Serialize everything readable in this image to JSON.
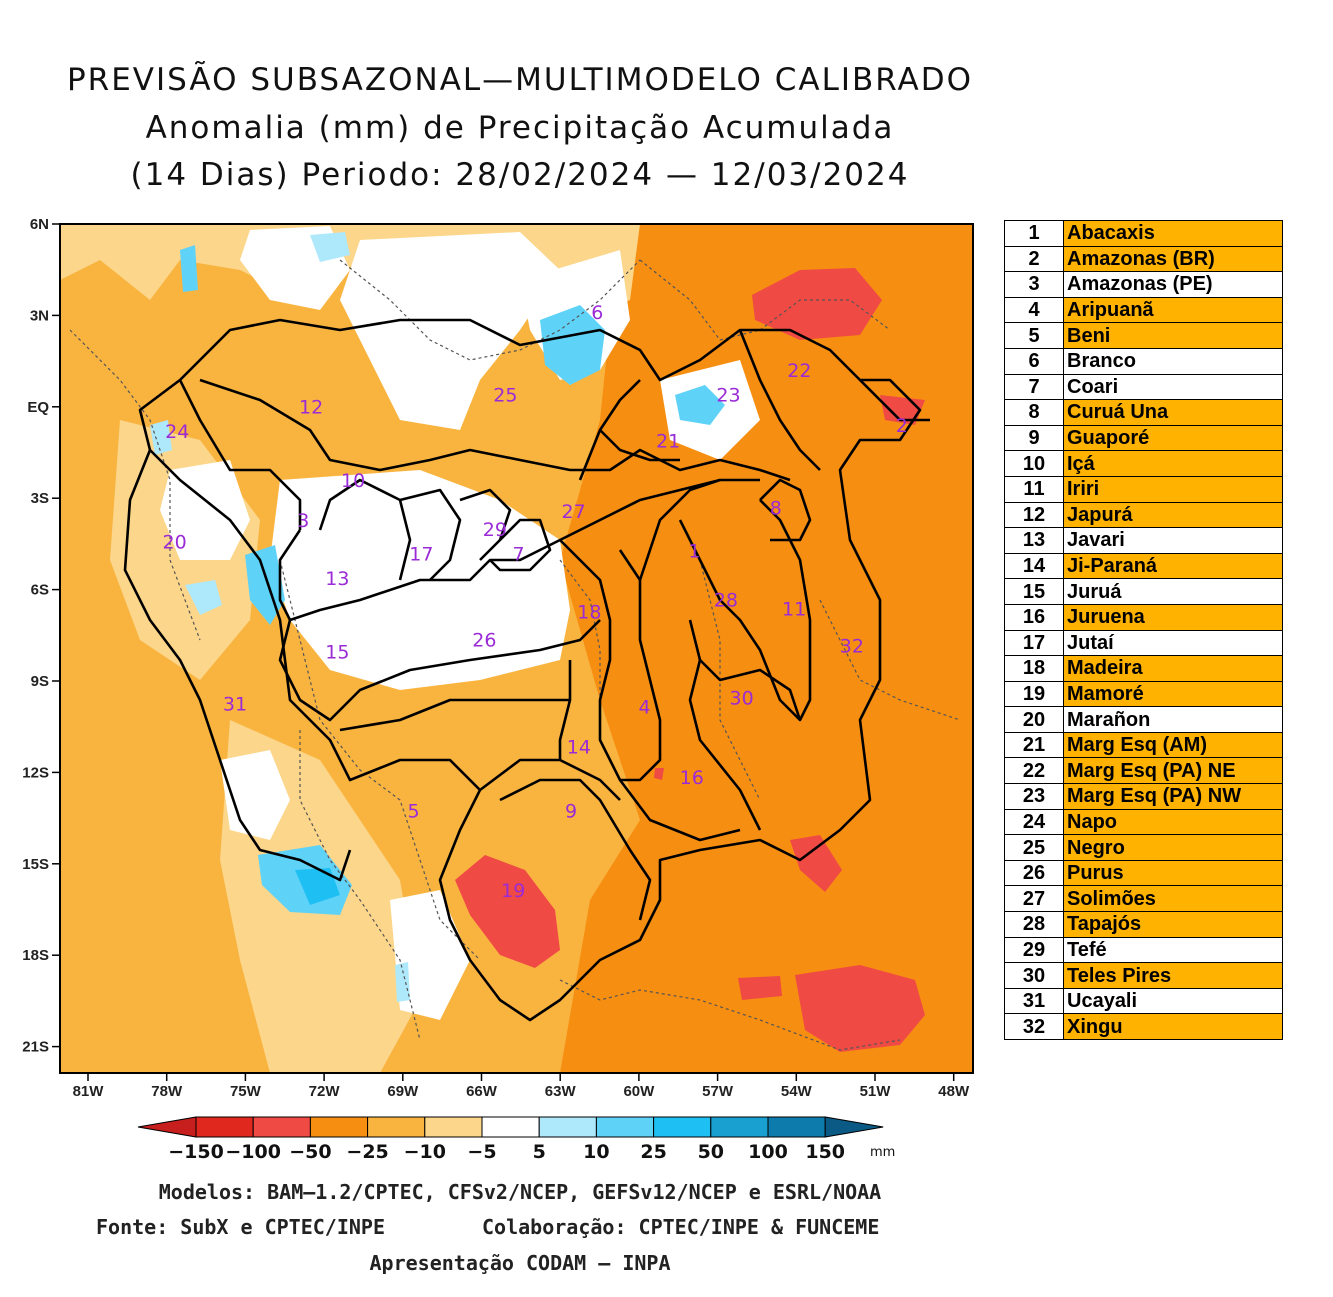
{
  "title": {
    "line1": "PREVISÃO SUBSAZONAL—MULTIMODELO CALIBRADO",
    "line2": "Anomalia (mm) de Precipitação Acumulada",
    "line3": "(14 Dias) Periodo: 28/02/2024 — 12/03/2024"
  },
  "map": {
    "lat_labels": [
      "6N",
      "3N",
      "EQ",
      "3S",
      "6S",
      "9S",
      "12S",
      "15S",
      "18S",
      "21S"
    ],
    "lon_labels": [
      "81W",
      "78W",
      "75W",
      "72W",
      "69W",
      "66W",
      "63W",
      "60W",
      "57W",
      "54W",
      "51W",
      "48W"
    ],
    "basin_labels": [
      {
        "id": "1",
        "lon": -57.9,
        "lat": -4.9
      },
      {
        "id": "2",
        "lon": -50.0,
        "lat": -0.8
      },
      {
        "id": "3",
        "lon": -72.8,
        "lat": -3.9
      },
      {
        "id": "4",
        "lon": -59.8,
        "lat": -10.0
      },
      {
        "id": "5",
        "lon": -68.6,
        "lat": -13.4
      },
      {
        "id": "6",
        "lon": -61.6,
        "lat": 2.9
      },
      {
        "id": "7",
        "lon": -64.6,
        "lat": -5.0
      },
      {
        "id": "8",
        "lon": -54.8,
        "lat": -3.5
      },
      {
        "id": "9",
        "lon": -62.6,
        "lat": -13.4
      },
      {
        "id": "10",
        "lon": -70.9,
        "lat": -2.6
      },
      {
        "id": "11",
        "lon": -54.1,
        "lat": -6.8
      },
      {
        "id": "12",
        "lon": -72.5,
        "lat": -0.2
      },
      {
        "id": "13",
        "lon": -71.5,
        "lat": -5.8
      },
      {
        "id": "14",
        "lon": -62.3,
        "lat": -11.3
      },
      {
        "id": "15",
        "lon": -71.5,
        "lat": -8.2
      },
      {
        "id": "16",
        "lon": -58.0,
        "lat": -12.3
      },
      {
        "id": "17",
        "lon": -68.3,
        "lat": -5.0
      },
      {
        "id": "18",
        "lon": -61.9,
        "lat": -6.9
      },
      {
        "id": "19",
        "lon": -64.8,
        "lat": -16.0
      },
      {
        "id": "20",
        "lon": -77.7,
        "lat": -4.6
      },
      {
        "id": "21",
        "lon": -58.9,
        "lat": -1.3
      },
      {
        "id": "22",
        "lon": -53.9,
        "lat": 1.0
      },
      {
        "id": "23",
        "lon": -56.6,
        "lat": 0.2
      },
      {
        "id": "24",
        "lon": -77.6,
        "lat": -1.0
      },
      {
        "id": "25",
        "lon": -65.1,
        "lat": 0.2
      },
      {
        "id": "26",
        "lon": -65.9,
        "lat": -7.8
      },
      {
        "id": "27",
        "lon": -62.5,
        "lat": -3.6
      },
      {
        "id": "28",
        "lon": -56.7,
        "lat": -6.5
      },
      {
        "id": "29",
        "lon": -65.5,
        "lat": -4.2
      },
      {
        "id": "30",
        "lon": -56.1,
        "lat": -9.7
      },
      {
        "id": "31",
        "lon": -75.4,
        "lat": -9.9
      },
      {
        "id": "32",
        "lon": -51.9,
        "lat": -8.0
      }
    ]
  },
  "colorbar": {
    "labels": [
      "−150",
      "−100",
      "−50",
      "−25",
      "−10",
      "−5",
      "5",
      "10",
      "25",
      "50",
      "100",
      "150"
    ],
    "unit": "mm",
    "colors": [
      "#e0281e",
      "#f04a44",
      "#f68e12",
      "#f9b440",
      "#fcd68a",
      "#ffffff",
      "#aee8fb",
      "#5fd2f8",
      "#1ec0f3",
      "#1a9fd1",
      "#0d7bab"
    ],
    "min_color": "#c71e1e",
    "max_color": "#0a5a85"
  },
  "legend": [
    {
      "num": "1",
      "name": "Abacaxis",
      "hl": true
    },
    {
      "num": "2",
      "name": "Amazonas (BR)",
      "hl": true
    },
    {
      "num": "3",
      "name": "Amazonas (PE)",
      "hl": false
    },
    {
      "num": "4",
      "name": "Aripuanã",
      "hl": true
    },
    {
      "num": "5",
      "name": "Beni",
      "hl": true
    },
    {
      "num": "6",
      "name": "Branco",
      "hl": false
    },
    {
      "num": "7",
      "name": "Coari",
      "hl": false
    },
    {
      "num": "8",
      "name": "Curuá Una",
      "hl": true
    },
    {
      "num": "9",
      "name": "Guaporé",
      "hl": true
    },
    {
      "num": "10",
      "name": "Içá",
      "hl": true
    },
    {
      "num": "11",
      "name": "Iriri",
      "hl": true
    },
    {
      "num": "12",
      "name": "Japurá",
      "hl": true
    },
    {
      "num": "13",
      "name": "Javari",
      "hl": false
    },
    {
      "num": "14",
      "name": "Ji-Paraná",
      "hl": true
    },
    {
      "num": "15",
      "name": "Juruá",
      "hl": false
    },
    {
      "num": "16",
      "name": "Juruena",
      "hl": true
    },
    {
      "num": "17",
      "name": "Jutaí",
      "hl": false
    },
    {
      "num": "18",
      "name": "Madeira",
      "hl": true
    },
    {
      "num": "19",
      "name": "Mamoré",
      "hl": true
    },
    {
      "num": "20",
      "name": "Marañon",
      "hl": false
    },
    {
      "num": "21",
      "name": "Marg Esq (AM)",
      "hl": true
    },
    {
      "num": "22",
      "name": "Marg Esq (PA) NE",
      "hl": true
    },
    {
      "num": "23",
      "name": "Marg Esq (PA) NW",
      "hl": true
    },
    {
      "num": "24",
      "name": "Napo",
      "hl": true
    },
    {
      "num": "25",
      "name": "Negro",
      "hl": true
    },
    {
      "num": "26",
      "name": "Purus",
      "hl": true
    },
    {
      "num": "27",
      "name": "Solimões",
      "hl": true
    },
    {
      "num": "28",
      "name": "Tapajós",
      "hl": true
    },
    {
      "num": "29",
      "name": "Tefé",
      "hl": false
    },
    {
      "num": "30",
      "name": "Teles Pires",
      "hl": true
    },
    {
      "num": "31",
      "name": "Ucayali",
      "hl": false
    },
    {
      "num": "32",
      "name": "Xingu",
      "hl": true
    }
  ],
  "footer": {
    "models": "Modelos: BAM—1.2/CPTEC, CFSv2/NCEP, GEFSv12/NCEP e ESRL/NOAA",
    "source": "Fonte: SubX e CPTEC/INPE",
    "collab": "Colaboração: CPTEC/INPE & FUNCEME",
    "presentation": "Apresentação CODAM — INPA"
  }
}
